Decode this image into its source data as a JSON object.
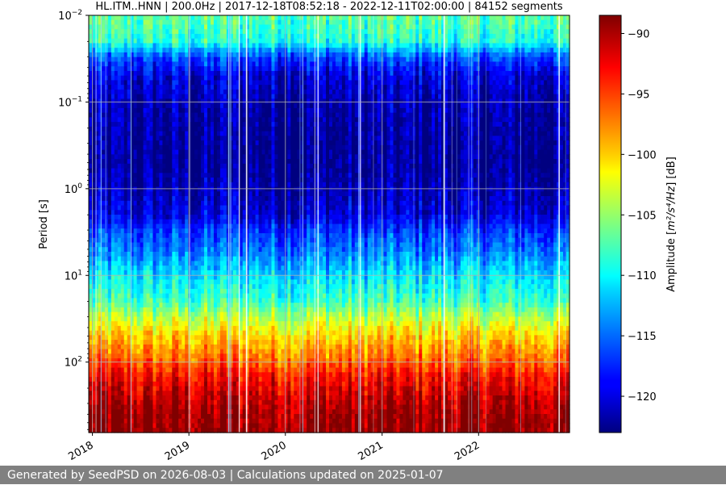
{
  "chart_data": {
    "type": "heatmap",
    "title": "HL.ITM..HNN | 200.0Hz | 2017-12-18T08:52:18 - 2022-12-11T02:00:00 | 84152 segments",
    "ylabel": "Period [s]",
    "x_ticks": [
      "2018",
      "2019",
      "2020",
      "2021",
      "2022"
    ],
    "x_range": [
      "2017-12-18",
      "2022-12-11"
    ],
    "y_scale": "log",
    "y_range": [
      0.01,
      650
    ],
    "y_ticks": [
      {
        "value": 0.01,
        "base": "10",
        "exp": "−2"
      },
      {
        "value": 0.1,
        "base": "10",
        "exp": "−1"
      },
      {
        "value": 1,
        "base": "10",
        "exp": "0"
      },
      {
        "value": 10,
        "base": "10",
        "exp": "1"
      },
      {
        "value": 100,
        "base": "10",
        "exp": "2"
      }
    ],
    "grid": true,
    "colormap": "jet",
    "colorbar": {
      "label_prefix": "Amplitude [",
      "label_unit": "m²/s⁴/Hz",
      "label_suffix": "] [dB]",
      "range": [
        -123,
        -88.5
      ],
      "ticks": [
        "−90",
        "−95",
        "−100",
        "−105",
        "−110",
        "−115",
        "−120"
      ],
      "tick_values": [
        -90,
        -95,
        -100,
        -105,
        -110,
        -115,
        -120
      ]
    },
    "amplitude_profile": {
      "period_s": [
        0.01,
        0.02,
        0.03,
        0.05,
        0.1,
        0.2,
        0.5,
        1,
        2,
        3,
        5,
        10,
        20,
        30,
        50,
        100,
        150,
        250,
        400,
        650
      ],
      "amplitude_db": [
        -107,
        -109,
        -116,
        -120,
        -121.5,
        -122,
        -122.5,
        -121.5,
        -120,
        -117,
        -115,
        -111,
        -108,
        -104,
        -100,
        -96,
        -93,
        -91,
        -89.5,
        -89
      ]
    }
  },
  "footer": {
    "text": "Generated by SeedPSD on 2026-08-03 | Calculations updated on 2025-01-07"
  }
}
